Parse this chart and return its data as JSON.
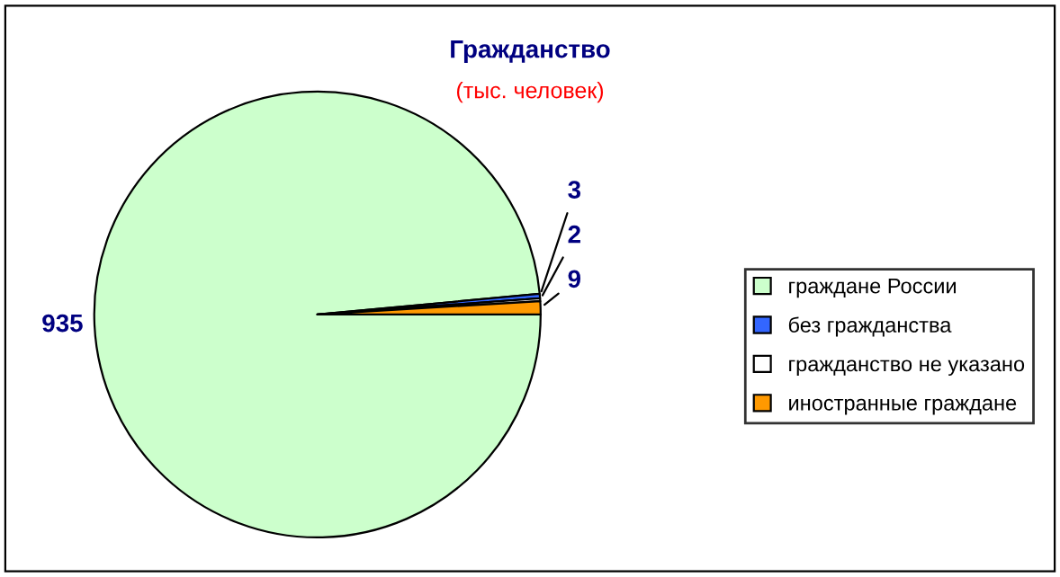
{
  "chart_data": {
    "type": "pie",
    "title": "Гражданство",
    "subtitle": "(тыс. человек)",
    "categories": [
      "граждане России",
      "без гражданства",
      "гражданство не указано",
      "иностранные граждане"
    ],
    "values": [
      935,
      3,
      2,
      9
    ],
    "colors": [
      "#ccffcc",
      "#3366ff",
      "#ffffff",
      "#ff9900"
    ],
    "data_labels": true,
    "legend": "right"
  }
}
